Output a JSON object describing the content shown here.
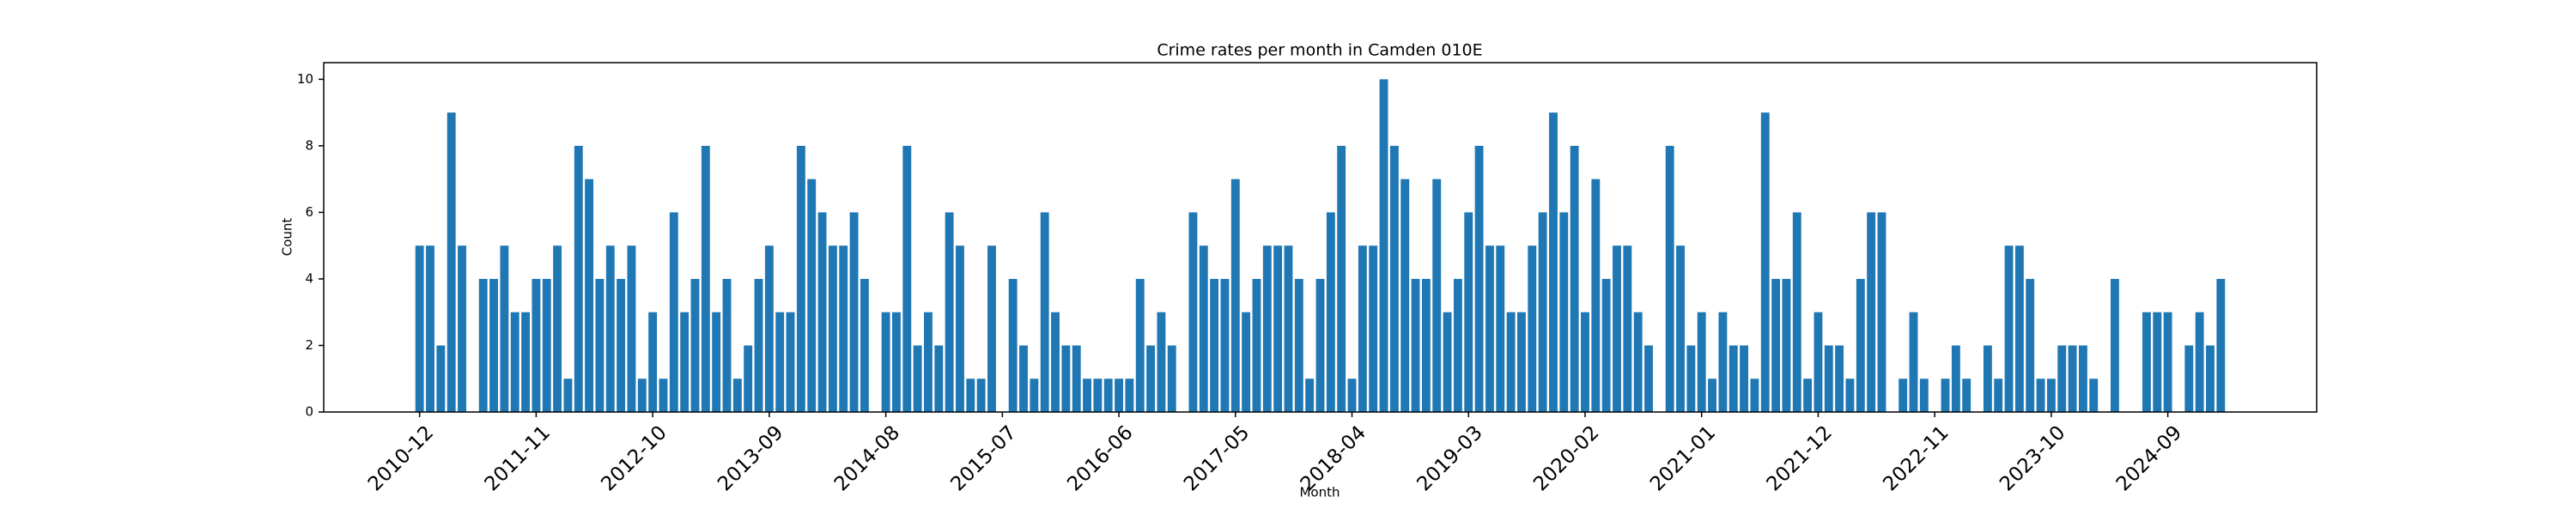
{
  "chart_data": {
    "type": "bar",
    "title": "Crime rates per month in Camden 010E",
    "x_label": "Month",
    "y_label": "Count",
    "color": "#1f77b4",
    "categories": [
      "2010-12",
      null,
      null,
      null,
      null,
      null,
      null,
      null,
      null,
      null,
      null,
      "2011-11",
      null,
      null,
      null,
      null,
      null,
      null,
      null,
      null,
      null,
      null,
      "2012-10",
      null,
      null,
      null,
      null,
      null,
      null,
      null,
      null,
      null,
      null,
      "2013-09",
      null,
      null,
      null,
      null,
      null,
      null,
      null,
      null,
      null,
      null,
      "2014-08",
      null,
      null,
      null,
      null,
      null,
      null,
      null,
      null,
      null,
      null,
      "2015-07",
      null,
      null,
      null,
      null,
      null,
      null,
      null,
      null,
      null,
      null,
      "2016-06",
      null,
      null,
      null,
      null,
      null,
      null,
      null,
      null,
      null,
      null,
      "2017-05",
      null,
      null,
      null,
      null,
      null,
      null,
      null,
      null,
      null,
      null,
      "2018-04",
      null,
      null,
      null,
      null,
      null,
      null,
      null,
      null,
      null,
      null,
      "2019-03",
      null,
      null,
      null,
      null,
      null,
      null,
      null,
      null,
      null,
      null,
      "2020-02",
      null,
      null,
      null,
      null,
      null,
      null,
      null,
      null,
      null,
      null,
      "2021-01",
      null,
      null,
      null,
      null,
      null,
      null,
      null,
      null,
      null,
      null,
      "2021-12",
      null,
      null,
      null,
      null,
      null,
      null,
      null,
      null,
      null,
      null,
      "2022-11",
      null,
      null,
      null,
      null,
      null,
      null,
      null,
      null,
      null,
      null,
      "2023-10",
      null,
      null,
      null,
      null,
      null,
      null,
      null,
      null,
      null,
      null,
      "2024-09",
      null,
      null,
      null,
      null,
      null
    ],
    "values": [
      5,
      5,
      2,
      9,
      5,
      0,
      4,
      4,
      5,
      3,
      3,
      4,
      4,
      5,
      1,
      8,
      7,
      4,
      5,
      4,
      5,
      1,
      3,
      1,
      6,
      3,
      4,
      8,
      3,
      4,
      1,
      2,
      4,
      5,
      3,
      3,
      8,
      7,
      6,
      5,
      5,
      6,
      4,
      0,
      3,
      3,
      8,
      2,
      3,
      2,
      6,
      5,
      1,
      1,
      5,
      0,
      4,
      2,
      1,
      6,
      3,
      2,
      2,
      1,
      1,
      1,
      1,
      1,
      4,
      2,
      3,
      2,
      0,
      6,
      5,
      4,
      4,
      7,
      3,
      4,
      5,
      5,
      5,
      4,
      1,
      4,
      6,
      8,
      1,
      5,
      5,
      10,
      8,
      7,
      4,
      4,
      7,
      3,
      4,
      6,
      8,
      5,
      5,
      3,
      3,
      5,
      6,
      9,
      6,
      8,
      3,
      7,
      4,
      5,
      5,
      3,
      2,
      0,
      8,
      5,
      2,
      3,
      1,
      3,
      2,
      2,
      1,
      9,
      4,
      4,
      6,
      1,
      3,
      2,
      2,
      1,
      4,
      6,
      6,
      0,
      1,
      3,
      1,
      0,
      1,
      2,
      1,
      0,
      2,
      1,
      5,
      5,
      4,
      1,
      1,
      2,
      2,
      2,
      1,
      0,
      4,
      0,
      0,
      3,
      3,
      3,
      0,
      2,
      3,
      2,
      4
    ],
    "ylim": [
      0,
      10.5
    ],
    "yticks": [
      0,
      2,
      4,
      6,
      8,
      10
    ]
  }
}
